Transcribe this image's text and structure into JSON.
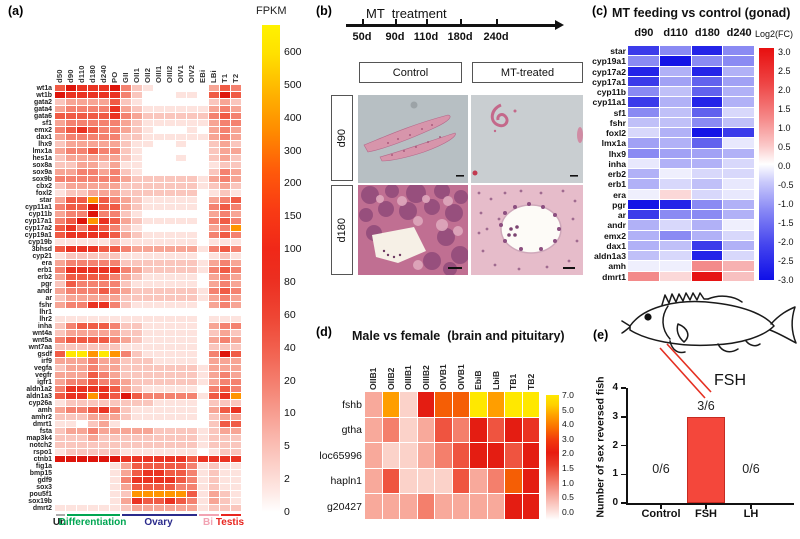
{
  "figure": {
    "panel_a": {
      "label": "(a)",
      "colorbar_title": "FPKM",
      "colorbar_ticks": [
        "600",
        "500",
        "400",
        "300",
        "200",
        "150",
        "100",
        "80",
        "60",
        "40",
        "20",
        "10",
        "5",
        "2",
        "0"
      ],
      "groups": [
        {
          "label": "Un",
          "color": "#222222",
          "line": "#aaaaaa",
          "start": 0,
          "end": 0
        },
        {
          "label": "Differentiation",
          "color": "#00a652",
          "line": "#00a652",
          "start": 1,
          "end": 5
        },
        {
          "label": "Ovary",
          "color": "#2b2b8c",
          "line": "#2b2b8c",
          "start": 6,
          "end": 12
        },
        {
          "label": "Bi",
          "color": "#f2a3b3",
          "line": "#f2a3b3",
          "start": 13,
          "end": 14
        },
        {
          "label": "Testis",
          "color": "#e8251f",
          "line": "#e8251f",
          "start": 15,
          "end": 16
        }
      ]
    },
    "panel_b": {
      "label": "(b)",
      "title": "MT  treatment",
      "timeline_ticks": [
        "50d",
        "90d",
        "110d",
        "180d",
        "240d"
      ],
      "col_headers": [
        "Control",
        "MT-treated"
      ],
      "row_headers": [
        "d90",
        "d180"
      ]
    },
    "panel_c": {
      "label": "(c)",
      "title": "MT feeding vs control (gonad)",
      "legend_title": "Log2(FC)",
      "colorbar_ticks": [
        "3.0",
        "2.5",
        "2.0",
        "1.5",
        "1.0",
        "0.5",
        "0.0",
        "-0.5",
        "-1.0",
        "-1.5",
        "-2.0",
        "-2.5",
        "-3.0"
      ]
    },
    "panel_d": {
      "label": "(d)",
      "title": "Male vs female  (brain and pituitary)",
      "colorbar_ticks": [
        "7.0",
        "5.0",
        "4.0",
        "3.0",
        "2.0",
        "1.5",
        "1.0",
        "0.5",
        "0.0"
      ]
    },
    "panel_e": {
      "label": "(e)",
      "fsh_annotation": "FSH",
      "ylabel": "Number of sex reversed fish",
      "yticks": [
        "4",
        "3",
        "2",
        "1",
        "0"
      ],
      "categories": [
        "Control",
        "FSH",
        "LH"
      ],
      "bar_labels": [
        "0/6",
        "3/6",
        "0/6"
      ]
    }
  },
  "chart_data": [
    {
      "id": "a",
      "type": "heatmap",
      "title": "",
      "legend": "FPKM",
      "legend_ticks": [
        600,
        500,
        400,
        300,
        200,
        150,
        100,
        80,
        60,
        40,
        20,
        10,
        5,
        2,
        0
      ],
      "columns": [
        "d50",
        "d90",
        "d110",
        "d180",
        "d240",
        "PO",
        "GII",
        "OII1",
        "OII2",
        "OIII1",
        "OIII2",
        "OIV1",
        "OIV2",
        "EBi",
        "LBi",
        "T1",
        "T2"
      ],
      "rows": [
        "wt1a",
        "wt1b",
        "gata2",
        "gata4",
        "gata6",
        "sf1",
        "emx2",
        "dax1",
        "lhx9",
        "lmx1a",
        "hes1a",
        "sox8a",
        "sox9a",
        "sox9b",
        "cbx2",
        "foxl2",
        "star",
        "cyp11a1",
        "cyp11b",
        "cyp17a1",
        "cyp17a2",
        "cyp19a1",
        "cyp19b",
        "3bhsd",
        "cyp21",
        "era",
        "erb1",
        "erb2",
        "pgr",
        "andr",
        "ar",
        "fshr",
        "lhr1",
        "lhr2",
        "inha",
        "wnt4a",
        "wnt5a",
        "wnt7aa",
        "gsdf",
        "irf9",
        "vegfa",
        "vegfr",
        "igfr1",
        "aldn1a2",
        "aldn1a3",
        "cyp26a",
        "amh",
        "amhr2",
        "dmrt1",
        "fsta",
        "map3k4",
        "notch2",
        "rspo1",
        "ctnb1",
        "fig1a",
        "bmp15",
        "gdf9",
        "sox3",
        "pou5f1",
        "sox19b",
        "dmrt2"
      ],
      "levels": [
        "57666742100000354",
        "76666642000110575",
        "23333521000000232",
        "34444632111111343",
        "55555643222222454",
        "34444432111111344",
        "45654432100010343",
        "34444422111111343",
        "23333321100100232",
        "34454421000000233",
        "23333321000100232",
        "22332311000000122",
        "33443421000000243",
        "44444432222221343",
        "23333322222221232",
        "12233322222220121",
        "35585432111110345",
        "45575532111110454",
        "34474421000000343",
        "45786532111110454",
        "56465421000000348",
        "56666532111110454",
        "11111211111110111",
        "56665543333331454",
        "12222211111110121",
        "34444422222221343",
        "46666643222221454",
        "35555432111110343",
        "25444421111110343",
        "34445432222221454",
        "23333322222221343",
        "34466421111110343",
        "00000000000000000",
        "11111111111110111",
        "24555422111110344",
        "23333322111110232",
        "45555432111110343",
        "22222211111110222",
        "59989842111110475",
        "33343322211110333",
        "23343322222221333",
        "33354322222221343",
        "34454432222221344",
        "46666532111110454",
        "56686575444441568",
        "12222222211110222",
        "34456421111110356",
        "22233321111110233",
        "11023100000000255",
        "23343333322221233",
        "22232222222221222",
        "22222222222221222",
        "12222211111110122",
        "77777766666656666",
        "00000135555541211",
        "00000135665541211",
        "00000146666541211",
        "00000135555441211",
        "00000128888851321",
        "00000136556541321",
        "11111123333331222"
      ],
      "level_to_fpkm": [
        0,
        2,
        5,
        10,
        20,
        40,
        80,
        150,
        300,
        600
      ],
      "note": "levels are 0-9 colour-intensity codes read from the figure (approximate FPKM)"
    },
    {
      "id": "c",
      "type": "heatmap",
      "title": "MT feeding vs control (gonad)",
      "legend": "Log2(FC)",
      "zlim": [
        -3,
        3
      ],
      "columns": [
        "d90",
        "d110",
        "d180",
        "d240"
      ],
      "rows": [
        "star",
        "cyp19a1",
        "cyp17a2",
        "cyp17a1",
        "cyp11b",
        "cyp11a1",
        "sf1",
        "fshr",
        "foxl2",
        "lmx1a",
        "lhx9",
        "inha",
        "erb2",
        "erb1",
        "era",
        "pgr",
        "ar",
        "andr",
        "emx2",
        "dax1",
        "aldn1a3",
        "amh",
        "dmrt1"
      ],
      "values": [
        [
          -2.5,
          -1.5,
          -2.8,
          -1.5
        ],
        [
          -1.5,
          -3.0,
          -1.5,
          -1.5
        ],
        [
          -2.8,
          -1.0,
          -2.8,
          -1.0
        ],
        [
          -2.5,
          -1.2,
          -2.0,
          -1.2
        ],
        [
          -1.5,
          -0.8,
          -2.0,
          -1.0
        ],
        [
          -2.5,
          -1.0,
          -2.8,
          -1.0
        ],
        [
          -1.5,
          -0.8,
          -2.0,
          -0.5
        ],
        [
          -0.8,
          -0.8,
          -1.5,
          -0.8
        ],
        [
          -0.5,
          -1.0,
          -3.0,
          -2.5
        ],
        [
          -1.2,
          -1.0,
          -2.0,
          -0.3
        ],
        [
          -1.5,
          -1.2,
          -1.2,
          -1.0
        ],
        [
          -0.3,
          -1.0,
          -1.0,
          -0.5
        ],
        [
          -1.0,
          -0.2,
          -0.5,
          -0.5
        ],
        [
          -1.0,
          -0.5,
          -0.8,
          -0.3
        ],
        [
          -0.2,
          0.5,
          -0.5,
          -0.3
        ],
        [
          -3.0,
          -2.8,
          -1.5,
          -1.0
        ],
        [
          -2.5,
          -1.5,
          -1.5,
          -1.0
        ],
        [
          -1.0,
          -0.5,
          -1.0,
          -0.2
        ],
        [
          -1.0,
          -1.5,
          -1.0,
          -0.5
        ],
        [
          -1.0,
          -0.8,
          -2.5,
          -1.0
        ],
        [
          -0.8,
          -0.5,
          -2.8,
          -0.5
        ],
        [
          -0.2,
          -0.2,
          1.5,
          1.0
        ],
        [
          1.5,
          0.5,
          3.0,
          0.8
        ]
      ]
    },
    {
      "id": "d",
      "type": "heatmap",
      "title": "Male vs female (brain and pituitary)",
      "zlim": [
        0,
        7
      ],
      "legend_ticks": [
        7.0,
        5.0,
        4.0,
        3.0,
        2.0,
        1.5,
        1.0,
        0.5,
        0.0
      ],
      "columns": [
        "OIIB1",
        "OIIB2",
        "OIIIB1",
        "OIIIB2",
        "OIVB1",
        "OIVB1",
        "EbiB",
        "LbiB",
        "TB1",
        "TB2"
      ],
      "rows": [
        "fshb",
        "gtha",
        "loc65996",
        "hapln1",
        "g20427"
      ],
      "values": [
        [
          1,
          5,
          0.5,
          3,
          4,
          4,
          7,
          5,
          7,
          7
        ],
        [
          1,
          1.5,
          0.5,
          1,
          2,
          1.5,
          3,
          2,
          3,
          2.5
        ],
        [
          1,
          0.5,
          0.5,
          1,
          1.5,
          2,
          3,
          3,
          2,
          3
        ],
        [
          1,
          2,
          0.5,
          0.5,
          0.5,
          2,
          1,
          1.5,
          4,
          3
        ],
        [
          1,
          1,
          1,
          1.5,
          1,
          1,
          1,
          1,
          3,
          3
        ]
      ]
    },
    {
      "id": "e",
      "type": "bar",
      "title": "",
      "categories": [
        "Control",
        "FSH",
        "LH"
      ],
      "values": [
        0,
        3,
        0
      ],
      "bar_labels": [
        "0/6",
        "3/6",
        "0/6"
      ],
      "ylabel": "Number of sex reversed fish",
      "ylim": [
        0,
        4
      ],
      "bar_color": "#f4473b"
    }
  ]
}
